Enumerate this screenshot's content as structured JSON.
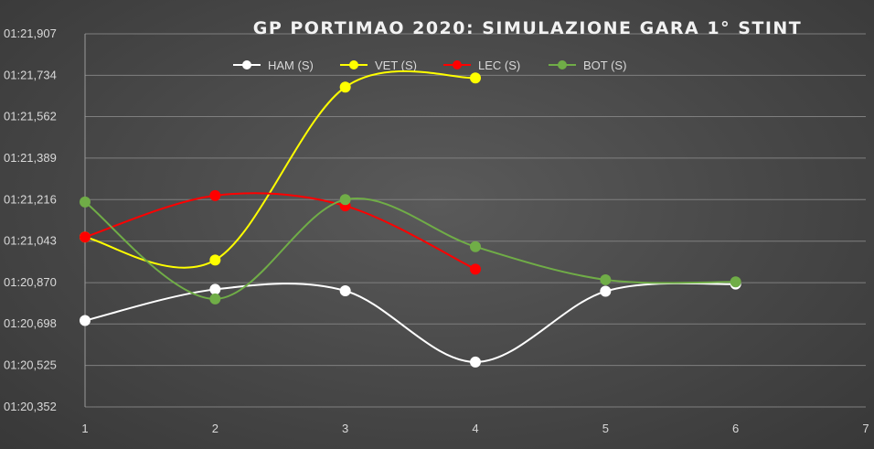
{
  "chart_data": {
    "type": "line",
    "title": "GP PORTIMAO 2020: SIMULAZIONE GARA 1° STINT",
    "xlabel": "",
    "ylabel": "",
    "xlim": [
      1,
      7
    ],
    "x_ticks": [
      "1",
      "2",
      "3",
      "4",
      "5",
      "6",
      "7"
    ],
    "ylim": [
      80.352,
      81.907
    ],
    "y_ticks": [
      {
        "value": 80.352,
        "label": "01:20,352"
      },
      {
        "value": 80.525,
        "label": "01:20,525"
      },
      {
        "value": 80.698,
        "label": "01:20,698"
      },
      {
        "value": 80.87,
        "label": "01:20,870"
      },
      {
        "value": 81.043,
        "label": "01:21,043"
      },
      {
        "value": 81.216,
        "label": "01:21,216"
      },
      {
        "value": 81.389,
        "label": "01:21,389"
      },
      {
        "value": 81.562,
        "label": "01:21,562"
      },
      {
        "value": 81.734,
        "label": "01:21,734"
      },
      {
        "value": 81.907,
        "label": "01:21,907"
      }
    ],
    "grid": "horizontal",
    "legend_position": "top",
    "series": [
      {
        "name": "HAM (S)",
        "color": "#ffffff",
        "x": [
          1,
          2,
          3,
          4,
          5,
          6
        ],
        "values": [
          80.712,
          80.842,
          80.836,
          80.539,
          80.834,
          80.864
        ]
      },
      {
        "name": "VET (S)",
        "color": "#ffff00",
        "x": [
          1,
          2,
          3,
          4
        ],
        "values": [
          81.06,
          80.964,
          81.685,
          81.723
        ]
      },
      {
        "name": "LEC (S)",
        "color": "#ff0000",
        "x": [
          1,
          2,
          3,
          4
        ],
        "values": [
          81.06,
          81.233,
          81.19,
          80.926
        ]
      },
      {
        "name": "BOT (S)",
        "color": "#70ad47",
        "x": [
          1,
          2,
          3,
          4,
          5,
          6
        ],
        "values": [
          81.206,
          80.802,
          81.216,
          81.02,
          80.882,
          80.873
        ]
      }
    ]
  }
}
